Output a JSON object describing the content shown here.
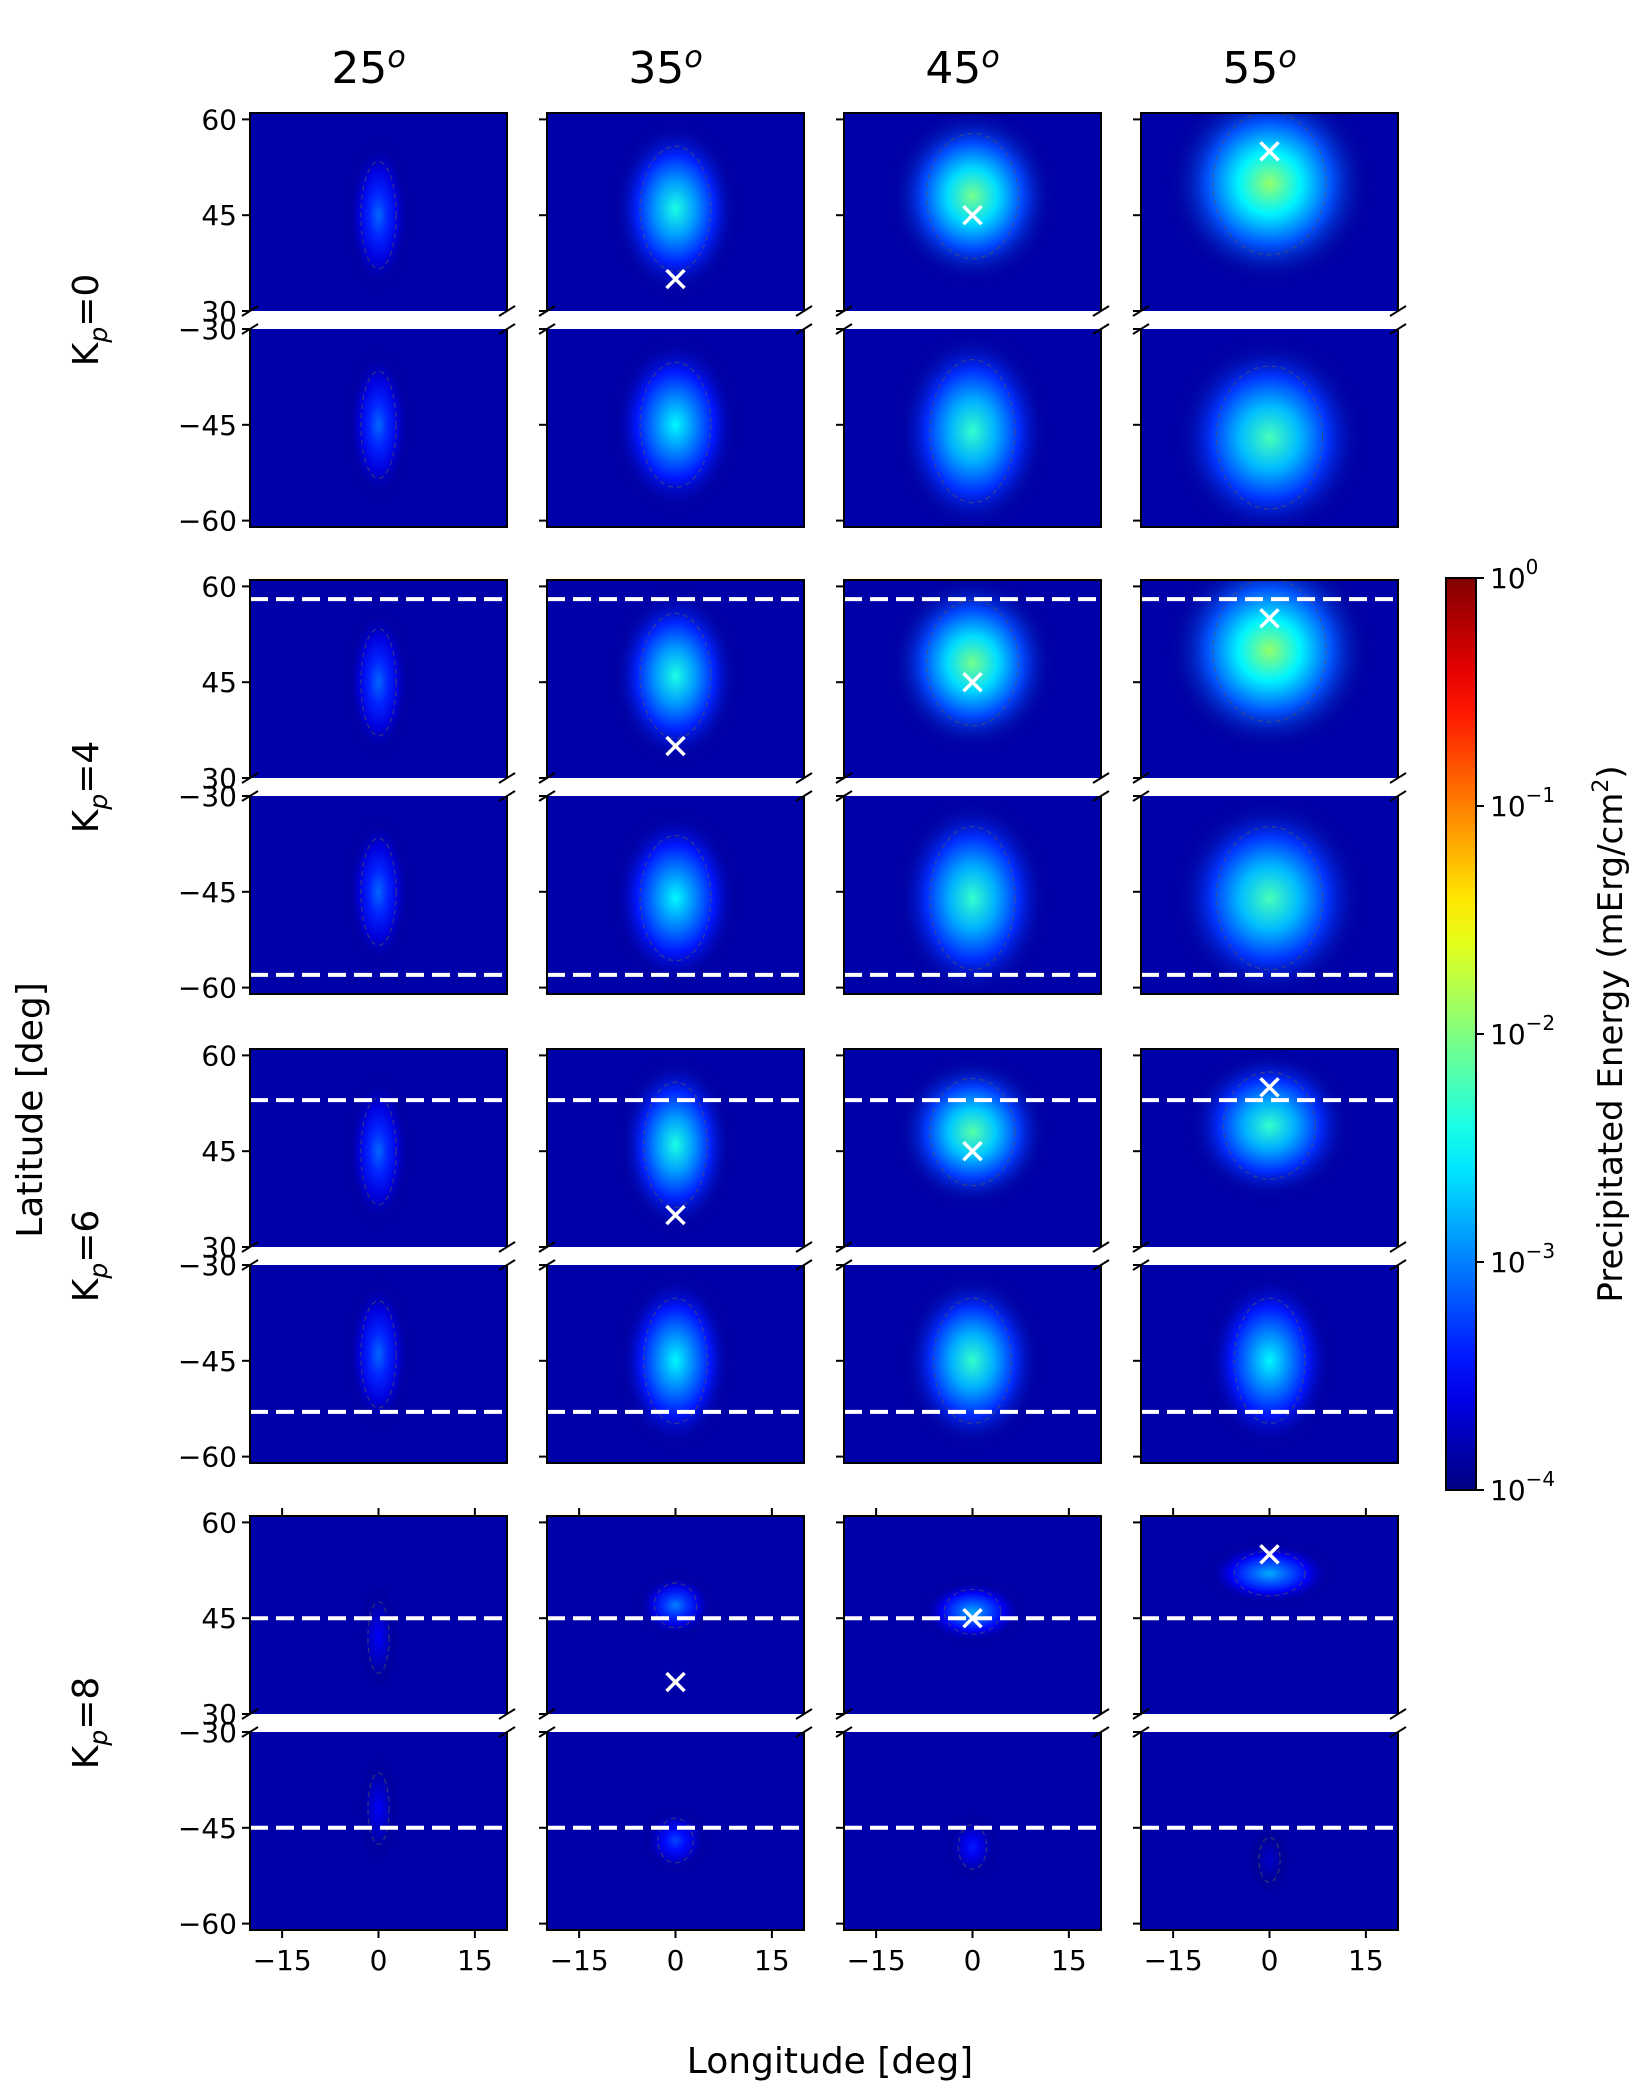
{
  "chart_data": {
    "type": "heatmap",
    "column_headers": [
      "25",
      "35",
      "45",
      "55"
    ],
    "column_header_superscript": "o",
    "row_labels": [
      {
        "base": "K",
        "sub": "p",
        "rest": "=0"
      },
      {
        "base": "K",
        "sub": "p",
        "rest": "=4"
      },
      {
        "base": "K",
        "sub": "p",
        "rest": "=6"
      },
      {
        "base": "K",
        "sub": "p",
        "rest": "=8"
      }
    ],
    "xlabel": "Longitude [deg]",
    "ylabel": "Latitude [deg]",
    "xticks": [
      -15,
      0,
      15
    ],
    "xtick_labels": [
      "−15",
      "0",
      "15"
    ],
    "xlim": [
      -20,
      20
    ],
    "upper_ylim": [
      30,
      61
    ],
    "lower_ylim": [
      -61,
      -30
    ],
    "upper_yticks": [
      60,
      45,
      30
    ],
    "upper_ytick_labels": [
      "60",
      "45",
      "30"
    ],
    "lower_yticks": [
      -30,
      -45,
      -60
    ],
    "lower_ytick_labels": [
      "−30",
      "−45",
      "−60"
    ],
    "colorbar": {
      "label": "Precipitated Energy (mErg/cm",
      "label_sup": "2",
      "label_end": ")",
      "scale": "log",
      "colormap": "jet",
      "range": [
        0.0001,
        1
      ],
      "ticks": [
        {
          "value": 1,
          "base": "10",
          "exp": "0"
        },
        {
          "value": 0.1,
          "base": "10",
          "exp": "−1"
        },
        {
          "value": 0.01,
          "base": "10",
          "exp": "−2"
        },
        {
          "value": 0.001,
          "base": "10",
          "exp": "−3"
        },
        {
          "value": 0.0001,
          "base": "10",
          "exp": "−4"
        }
      ]
    },
    "dashed_line_latitudes_by_kp": [
      null,
      58,
      53,
      45
    ],
    "source_latitudes_by_column": [
      25,
      35,
      45,
      55
    ],
    "panels": [
      {
        "row": 0,
        "col": 0,
        "marker": null,
        "north": {
          "peak": 0.0008,
          "w": 2.5,
          "c": 45,
          "s": 6
        },
        "south": {
          "peak": 0.0008,
          "w": 2.5,
          "c": -45,
          "s": 6
        }
      },
      {
        "row": 0,
        "col": 1,
        "marker": [
          0,
          35
        ],
        "north": {
          "peak": 0.004,
          "w": 5,
          "c": 46,
          "s": 7
        },
        "south": {
          "peak": 0.003,
          "w": 5,
          "c": -45,
          "s": 7
        }
      },
      {
        "row": 0,
        "col": 2,
        "marker": [
          0,
          45
        ],
        "north": {
          "peak": 0.009,
          "w": 6.5,
          "c": 48,
          "s": 7
        },
        "south": {
          "peak": 0.005,
          "w": 6,
          "c": -46,
          "s": 8
        }
      },
      {
        "row": 0,
        "col": 3,
        "marker": [
          0,
          55
        ],
        "north": {
          "peak": 0.012,
          "w": 8,
          "c": 50,
          "s": 8
        },
        "south": {
          "peak": 0.006,
          "w": 7.5,
          "c": -47,
          "s": 8
        }
      },
      {
        "row": 1,
        "col": 0,
        "marker": null,
        "north": {
          "peak": 0.0008,
          "w": 2.5,
          "c": 45,
          "s": 6
        },
        "south": {
          "peak": 0.0008,
          "w": 2.5,
          "c": -45,
          "s": 6
        }
      },
      {
        "row": 1,
        "col": 1,
        "marker": [
          0,
          35
        ],
        "north": {
          "peak": 0.004,
          "w": 5,
          "c": 46,
          "s": 7
        },
        "south": {
          "peak": 0.003,
          "w": 5,
          "c": -46,
          "s": 7
        }
      },
      {
        "row": 1,
        "col": 2,
        "marker": [
          0,
          45
        ],
        "north": {
          "peak": 0.009,
          "w": 6.5,
          "c": 48,
          "s": 7
        },
        "south": {
          "peak": 0.005,
          "w": 6,
          "c": -46,
          "s": 8
        }
      },
      {
        "row": 1,
        "col": 3,
        "marker": [
          0,
          55
        ],
        "north": {
          "peak": 0.012,
          "w": 8,
          "c": 50,
          "s": 8
        },
        "south": {
          "peak": 0.006,
          "w": 7.5,
          "c": -46,
          "s": 8
        }
      },
      {
        "row": 2,
        "col": 0,
        "marker": null,
        "north": {
          "peak": 0.0008,
          "w": 2.5,
          "c": 45,
          "s": 6
        },
        "south": {
          "peak": 0.0008,
          "w": 2.5,
          "c": -44,
          "s": 6
        }
      },
      {
        "row": 2,
        "col": 1,
        "marker": [
          0,
          35
        ],
        "north": {
          "peak": 0.004,
          "w": 4.5,
          "c": 46,
          "s": 7
        },
        "south": {
          "peak": 0.003,
          "w": 4.5,
          "c": -45,
          "s": 7
        }
      },
      {
        "row": 2,
        "col": 2,
        "marker": [
          0,
          45
        ],
        "north": {
          "peak": 0.007,
          "w": 6,
          "c": 48,
          "s": 6
        },
        "south": {
          "peak": 0.005,
          "w": 5.5,
          "c": -45,
          "s": 7
        }
      },
      {
        "row": 2,
        "col": 3,
        "marker": [
          0,
          55
        ],
        "north": {
          "peak": 0.005,
          "w": 6.5,
          "c": 49,
          "s": 6
        },
        "south": {
          "peak": 0.003,
          "w": 5,
          "c": -45,
          "s": 7
        }
      },
      {
        "row": 3,
        "col": 0,
        "marker": null,
        "north": {
          "peak": 0.0003,
          "w": 1.5,
          "c": 42,
          "s": 4
        },
        "south": {
          "peak": 0.0003,
          "w": 1.5,
          "c": -42,
          "s": 4
        }
      },
      {
        "row": 3,
        "col": 1,
        "marker": [
          0,
          35
        ],
        "north": {
          "peak": 0.001,
          "w": 3,
          "c": 47,
          "s": 2.5
        },
        "south": {
          "peak": 0.0006,
          "w": 2.5,
          "c": -47,
          "s": 2.5
        }
      },
      {
        "row": 3,
        "col": 2,
        "marker": [
          0,
          45
        ],
        "north": {
          "peak": 0.0015,
          "w": 4,
          "c": 46,
          "s": 2.5
        },
        "south": {
          "peak": 0.0004,
          "w": 2,
          "c": -48,
          "s": 2.5
        }
      },
      {
        "row": 3,
        "col": 3,
        "marker": [
          0,
          55
        ],
        "north": {
          "peak": 0.0015,
          "w": 5,
          "c": 52,
          "s": 2.5
        },
        "south": {
          "peak": 0.0002,
          "w": 1.5,
          "c": -50,
          "s": 2.5
        }
      }
    ]
  }
}
